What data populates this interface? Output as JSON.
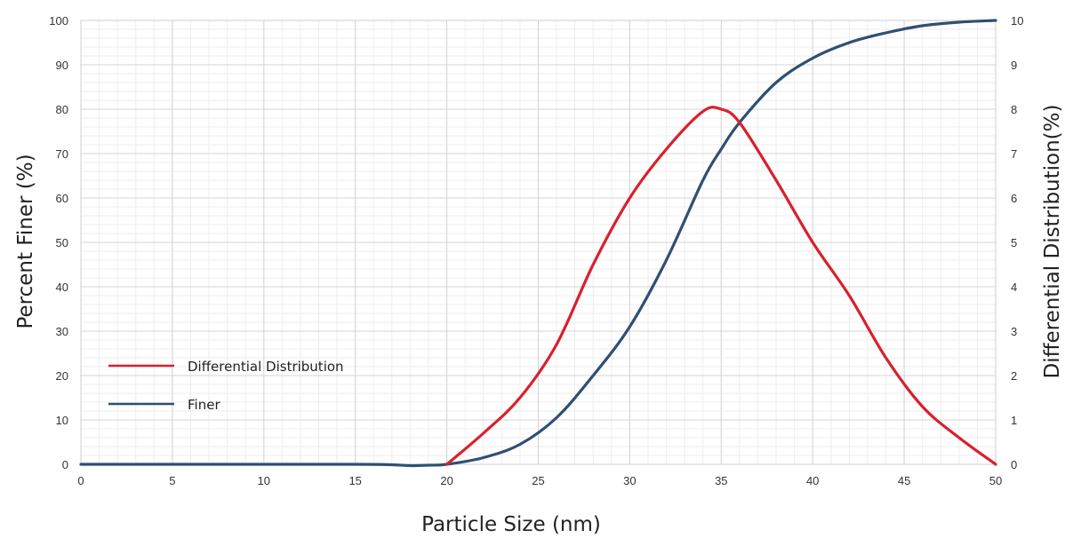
{
  "chart_data": {
    "type": "line",
    "title": "",
    "xlabel": "Particle Size (nm)",
    "ylabel": "Percent Finer (%)",
    "y2label": "Differential Distribution(%)",
    "xlim": [
      0,
      50
    ],
    "ylim": [
      0,
      100
    ],
    "y2lim": [
      0,
      10
    ],
    "x_ticks": [
      "0",
      "5",
      "10",
      "15",
      "20",
      "25",
      "30",
      "35",
      "40",
      "45",
      "50"
    ],
    "y_ticks": [
      "0",
      "10",
      "20",
      "30",
      "40",
      "50",
      "60",
      "70",
      "80",
      "90",
      "100"
    ],
    "y2_ticks": [
      "0",
      "1",
      "2",
      "3",
      "4",
      "5",
      "6",
      "7",
      "8",
      "9",
      "10"
    ],
    "grid": true,
    "legend": {
      "position": "lower-left"
    },
    "series": [
      {
        "name": "Differential Distribution",
        "axis": "right",
        "color": "#d9202c",
        "x": [
          20,
          22,
          24,
          26,
          28,
          30,
          32,
          34,
          35,
          36,
          38,
          40,
          42,
          44,
          46,
          48,
          50
        ],
        "y": [
          0,
          0.7,
          1.5,
          2.7,
          4.5,
          6.0,
          7.1,
          7.95,
          8.0,
          7.7,
          6.4,
          5.0,
          3.8,
          2.4,
          1.3,
          0.6,
          0
        ]
      },
      {
        "name": "Finer",
        "axis": "left",
        "color": "#2f4f73",
        "x": [
          0,
          5,
          10,
          15,
          17,
          18,
          19,
          20,
          22,
          24,
          26,
          28,
          30,
          32,
          34,
          35,
          36,
          38,
          40,
          42,
          44,
          46,
          48,
          50
        ],
        "y": [
          0,
          0,
          0,
          0,
          -0.1,
          -0.3,
          -0.2,
          0,
          1.5,
          4.5,
          10.5,
          20,
          31,
          46,
          64,
          71,
          77,
          86,
          91.5,
          95,
          97.2,
          98.8,
          99.6,
          100
        ]
      }
    ]
  }
}
